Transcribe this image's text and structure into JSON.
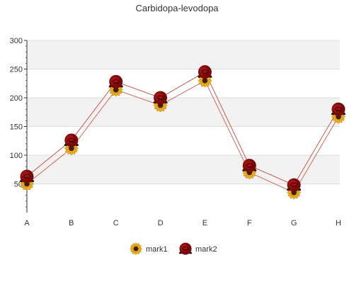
{
  "chart_data": {
    "type": "line",
    "title": "Carbidopa-levodopa",
    "xlabel": "",
    "ylabel": "",
    "categories": [
      "A",
      "B",
      "C",
      "D",
      "E",
      "F",
      "G",
      "H"
    ],
    "ylim": [
      0,
      300
    ],
    "yticks": [
      "50",
      "100",
      "150",
      "200",
      "250",
      "300"
    ],
    "grid": true,
    "legend_position": "bottom",
    "series": [
      {
        "name": "mark1",
        "values": [
          50,
          112,
          214,
          187,
          230,
          70,
          35,
          167
        ],
        "color": "#d4594a",
        "marker": "sunflower-icon"
      },
      {
        "name": "mark2",
        "values": [
          63,
          126,
          228,
          200,
          245,
          82,
          48,
          180
        ],
        "color": "#c8463c",
        "marker": "rose-icon"
      }
    ]
  }
}
